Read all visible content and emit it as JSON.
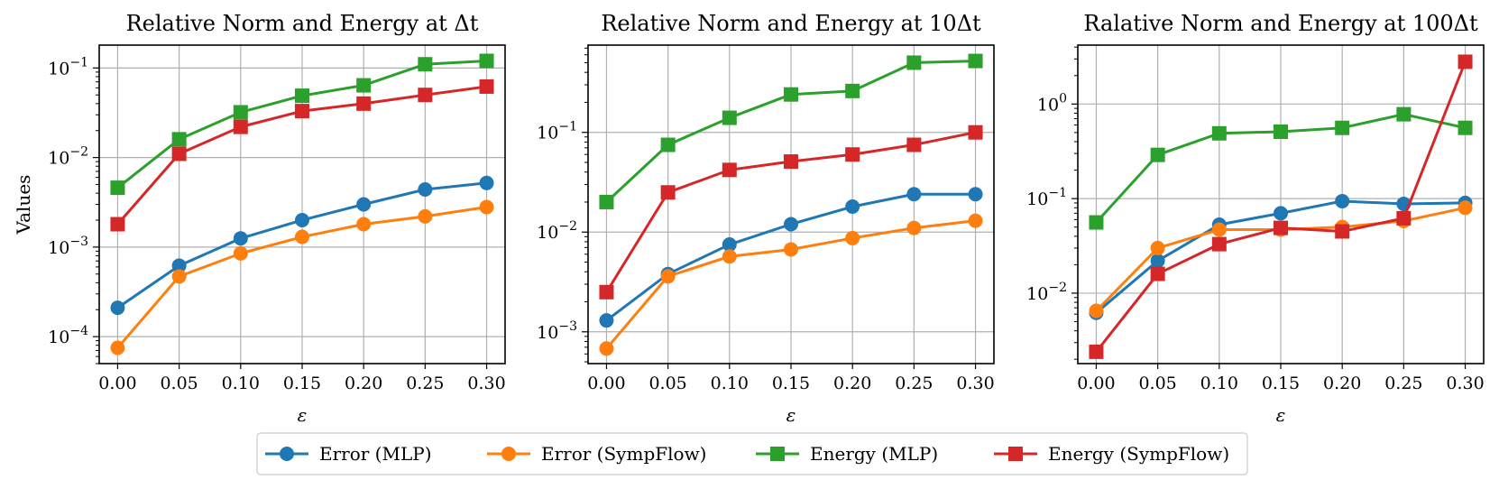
{
  "chart_data": [
    {
      "type": "line",
      "title": "Relative Norm and Energy at Δt",
      "xlabel": "ε",
      "ylabel": "Values",
      "yscale": "log",
      "x": [
        0.0,
        0.05,
        0.1,
        0.15,
        0.2,
        0.25,
        0.3
      ],
      "xticks": [
        "0.00",
        "0.05",
        "0.10",
        "0.15",
        "0.20",
        "0.25",
        "0.30"
      ],
      "yticks": [
        {
          "base": "10",
          "exp": "−4",
          "value": 0.0001
        },
        {
          "base": "10",
          "exp": "−3",
          "value": 0.001
        },
        {
          "base": "10",
          "exp": "−2",
          "value": 0.01
        },
        {
          "base": "10",
          "exp": "−1",
          "value": 0.1
        }
      ],
      "ylim": [
        5e-05,
        0.18
      ],
      "series": [
        {
          "name": "Error (MLP)",
          "values": [
            0.00021,
            0.00062,
            0.00125,
            0.002,
            0.003,
            0.0044,
            0.0052
          ]
        },
        {
          "name": "Error (SympFlow)",
          "values": [
            7.5e-05,
            0.00047,
            0.00085,
            0.0013,
            0.0018,
            0.0022,
            0.0028
          ]
        },
        {
          "name": "Energy (MLP)",
          "values": [
            0.0046,
            0.016,
            0.032,
            0.049,
            0.064,
            0.11,
            0.12
          ]
        },
        {
          "name": "Energy (SympFlow)",
          "values": [
            0.0018,
            0.011,
            0.022,
            0.033,
            0.04,
            0.05,
            0.062
          ]
        }
      ]
    },
    {
      "type": "line",
      "title": "Relative Norm and Energy at 10Δt",
      "xlabel": "ε",
      "ylabel": "",
      "yscale": "log",
      "x": [
        0.0,
        0.05,
        0.1,
        0.15,
        0.2,
        0.25,
        0.3
      ],
      "xticks": [
        "0.00",
        "0.05",
        "0.10",
        "0.15",
        "0.20",
        "0.25",
        "0.30"
      ],
      "yticks": [
        {
          "base": "10",
          "exp": "−3",
          "value": 0.001
        },
        {
          "base": "10",
          "exp": "−2",
          "value": 0.01
        },
        {
          "base": "10",
          "exp": "−1",
          "value": 0.1
        }
      ],
      "ylim": [
        0.00048,
        0.75
      ],
      "series": [
        {
          "name": "Error (MLP)",
          "values": [
            0.0013,
            0.0038,
            0.0075,
            0.012,
            0.018,
            0.024,
            0.024
          ]
        },
        {
          "name": "Error (SympFlow)",
          "values": [
            0.00068,
            0.0036,
            0.0057,
            0.0067,
            0.0087,
            0.011,
            0.013
          ]
        },
        {
          "name": "Energy (MLP)",
          "values": [
            0.02,
            0.075,
            0.14,
            0.24,
            0.26,
            0.5,
            0.52
          ]
        },
        {
          "name": "Energy (SympFlow)",
          "values": [
            0.0025,
            0.025,
            0.042,
            0.051,
            0.06,
            0.075,
            0.1
          ]
        }
      ]
    },
    {
      "type": "line",
      "title": "Ralative Norm and Energy at 100Δt",
      "xlabel": "ε",
      "ylabel": "",
      "yscale": "log",
      "x": [
        0.0,
        0.05,
        0.1,
        0.15,
        0.2,
        0.25,
        0.3
      ],
      "xticks": [
        "0.00",
        "0.05",
        "0.10",
        "0.15",
        "0.20",
        "0.25",
        "0.30"
      ],
      "yticks": [
        {
          "base": "10",
          "exp": "−2",
          "value": 0.01
        },
        {
          "base": "10",
          "exp": "−1",
          "value": 0.1
        },
        {
          "base": "10",
          "exp": "0",
          "value": 1
        }
      ],
      "ylim": [
        0.0018,
        4.2
      ],
      "series": [
        {
          "name": "Error (MLP)",
          "values": [
            0.0062,
            0.022,
            0.053,
            0.07,
            0.094,
            0.088,
            0.09
          ]
        },
        {
          "name": "Error (SympFlow)",
          "values": [
            0.0065,
            0.03,
            0.047,
            0.047,
            0.05,
            0.058,
            0.08
          ]
        },
        {
          "name": "Energy (MLP)",
          "values": [
            0.056,
            0.29,
            0.49,
            0.51,
            0.56,
            0.78,
            0.56
          ]
        },
        {
          "name": "Energy (SympFlow)",
          "values": [
            0.0024,
            0.016,
            0.033,
            0.049,
            0.045,
            0.062,
            2.8
          ]
        }
      ]
    }
  ],
  "legend": {
    "placement": "bottom-center",
    "items": [
      {
        "label": "Error (MLP)",
        "color": "#1f77b4",
        "marker": "circle"
      },
      {
        "label": "Error (SympFlow)",
        "color": "#ff7f0e",
        "marker": "circle"
      },
      {
        "label": "Energy (MLP)",
        "color": "#2ca02c",
        "marker": "square"
      },
      {
        "label": "Energy (SympFlow)",
        "color": "#d62728",
        "marker": "square"
      }
    ]
  },
  "colors": {
    "Error (MLP)": "#1f77b4",
    "Error (SympFlow)": "#ff7f0e",
    "Energy (MLP)": "#2ca02c",
    "Energy (SympFlow)": "#d62728",
    "grid": "#b0b0b0"
  }
}
